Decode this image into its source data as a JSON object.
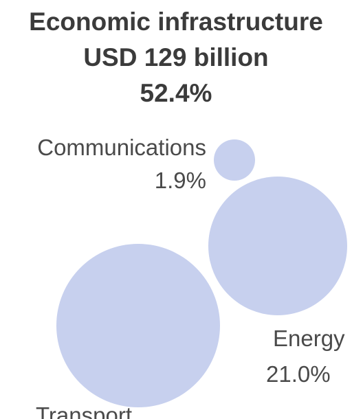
{
  "title_lines": [
    "Economic infrastructure",
    "USD 129 billion",
    "52.4%"
  ],
  "colors": {
    "bubble": "#c7d0ee",
    "text": "#3b3b3b",
    "label": "#4a4a4a"
  },
  "chart_data": {
    "type": "bubble",
    "title": "Economic infrastructure USD 129 billion 52.4%",
    "series": [
      {
        "name": "Communications",
        "value": 1.9,
        "value_label": "1.9%"
      },
      {
        "name": "Energy",
        "value": 21.0,
        "value_label": "21.0%"
      },
      {
        "name": "Transport",
        "value": null,
        "value_label": ""
      }
    ]
  }
}
